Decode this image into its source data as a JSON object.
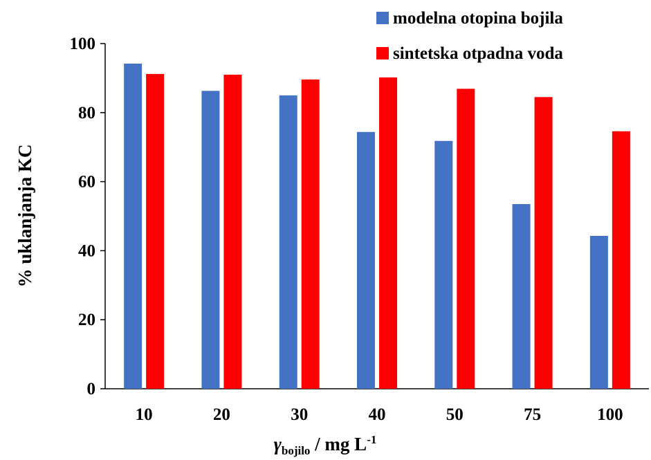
{
  "chart_data": {
    "type": "bar",
    "categories": [
      "10",
      "20",
      "30",
      "40",
      "50",
      "75",
      "100"
    ],
    "series": [
      {
        "name": "modelna otopina bojila",
        "color": "#4472C4",
        "values": [
          94.2,
          86.3,
          85.0,
          74.4,
          71.8,
          53.5,
          44.3
        ]
      },
      {
        "name": "sintetska otpadna voda",
        "color": "#FF0000",
        "values": [
          91.2,
          91.0,
          89.6,
          90.2,
          86.9,
          84.5,
          74.6
        ]
      }
    ],
    "xlabel": {
      "symbol": "γ",
      "subscript": "bojilo",
      "rest": " / mg L",
      "superscript": "-1"
    },
    "ylabel": "% uklanjanja KC",
    "ylim": [
      0,
      100
    ],
    "yticks": [
      "0",
      "20",
      "40",
      "60",
      "80",
      "100"
    ],
    "grid": false,
    "legend_position": "top-right"
  }
}
